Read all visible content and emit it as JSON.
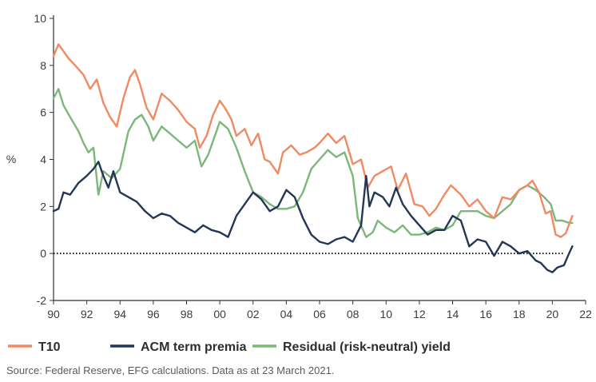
{
  "chart_data": {
    "type": "line",
    "ylabel": "%",
    "xlim": [
      1990,
      2022
    ],
    "ylim": [
      -2,
      10
    ],
    "x_ticks": [
      "90",
      "92",
      "94",
      "96",
      "98",
      "00",
      "02",
      "04",
      "06",
      "08",
      "10",
      "12",
      "14",
      "16",
      "18",
      "20",
      "22"
    ],
    "y_ticks": [
      "-2",
      "0",
      "2",
      "4",
      "6",
      "8",
      "10"
    ],
    "zero_line": true,
    "legend_position": "bottom",
    "series": [
      {
        "name": "T10",
        "color": "#f08a63",
        "points": [
          [
            1990.0,
            8.4
          ],
          [
            1990.3,
            8.9
          ],
          [
            1990.6,
            8.6
          ],
          [
            1990.9,
            8.3
          ],
          [
            1991.3,
            8.0
          ],
          [
            1991.8,
            7.6
          ],
          [
            1992.2,
            7.0
          ],
          [
            1992.6,
            7.4
          ],
          [
            1993.0,
            6.4
          ],
          [
            1993.4,
            5.8
          ],
          [
            1993.8,
            5.4
          ],
          [
            1994.2,
            6.6
          ],
          [
            1994.6,
            7.5
          ],
          [
            1994.9,
            7.8
          ],
          [
            1995.2,
            7.2
          ],
          [
            1995.6,
            6.2
          ],
          [
            1996.0,
            5.7
          ],
          [
            1996.5,
            6.8
          ],
          [
            1997.0,
            6.5
          ],
          [
            1997.5,
            6.1
          ],
          [
            1998.0,
            5.6
          ],
          [
            1998.5,
            5.3
          ],
          [
            1998.8,
            4.5
          ],
          [
            1999.2,
            5.0
          ],
          [
            1999.6,
            5.9
          ],
          [
            2000.0,
            6.5
          ],
          [
            2000.3,
            6.2
          ],
          [
            2000.7,
            5.7
          ],
          [
            2001.0,
            5.0
          ],
          [
            2001.5,
            5.3
          ],
          [
            2001.9,
            4.6
          ],
          [
            2002.3,
            5.1
          ],
          [
            2002.7,
            4.0
          ],
          [
            2003.0,
            3.9
          ],
          [
            2003.5,
            3.4
          ],
          [
            2003.8,
            4.3
          ],
          [
            2004.3,
            4.6
          ],
          [
            2004.8,
            4.2
          ],
          [
            2005.2,
            4.3
          ],
          [
            2005.7,
            4.5
          ],
          [
            2006.0,
            4.7
          ],
          [
            2006.5,
            5.1
          ],
          [
            2007.0,
            4.7
          ],
          [
            2007.5,
            5.0
          ],
          [
            2008.0,
            3.8
          ],
          [
            2008.5,
            4.0
          ],
          [
            2008.9,
            2.8
          ],
          [
            2009.3,
            3.3
          ],
          [
            2009.8,
            3.5
          ],
          [
            2010.3,
            3.7
          ],
          [
            2010.7,
            2.7
          ],
          [
            2011.2,
            3.4
          ],
          [
            2011.7,
            2.1
          ],
          [
            2012.2,
            2.0
          ],
          [
            2012.6,
            1.6
          ],
          [
            2013.0,
            1.9
          ],
          [
            2013.5,
            2.5
          ],
          [
            2013.9,
            2.9
          ],
          [
            2014.5,
            2.5
          ],
          [
            2015.0,
            2.0
          ],
          [
            2015.5,
            2.3
          ],
          [
            2016.0,
            1.8
          ],
          [
            2016.5,
            1.5
          ],
          [
            2017.0,
            2.4
          ],
          [
            2017.5,
            2.3
          ],
          [
            2018.0,
            2.7
          ],
          [
            2018.5,
            2.9
          ],
          [
            2018.8,
            3.1
          ],
          [
            2019.2,
            2.6
          ],
          [
            2019.6,
            1.7
          ],
          [
            2019.9,
            1.8
          ],
          [
            2020.2,
            0.8
          ],
          [
            2020.5,
            0.7
          ],
          [
            2020.8,
            0.85
          ],
          [
            2021.2,
            1.6
          ]
        ]
      },
      {
        "name": "ACM term premia",
        "color": "#243656",
        "points": [
          [
            1990.0,
            1.8
          ],
          [
            1990.3,
            1.9
          ],
          [
            1990.6,
            2.6
          ],
          [
            1991.0,
            2.5
          ],
          [
            1991.5,
            3.0
          ],
          [
            1992.0,
            3.3
          ],
          [
            1992.4,
            3.6
          ],
          [
            1992.7,
            3.9
          ],
          [
            1993.0,
            3.3
          ],
          [
            1993.3,
            2.8
          ],
          [
            1993.6,
            3.5
          ],
          [
            1994.0,
            2.6
          ],
          [
            1994.5,
            2.4
          ],
          [
            1995.0,
            2.2
          ],
          [
            1995.5,
            1.8
          ],
          [
            1996.0,
            1.5
          ],
          [
            1996.5,
            1.7
          ],
          [
            1997.0,
            1.6
          ],
          [
            1997.5,
            1.3
          ],
          [
            1998.0,
            1.1
          ],
          [
            1998.5,
            0.9
          ],
          [
            1999.0,
            1.2
          ],
          [
            1999.5,
            1.0
          ],
          [
            2000.0,
            0.9
          ],
          [
            2000.5,
            0.7
          ],
          [
            2001.0,
            1.6
          ],
          [
            2001.5,
            2.1
          ],
          [
            2002.0,
            2.6
          ],
          [
            2002.5,
            2.3
          ],
          [
            2003.0,
            1.8
          ],
          [
            2003.5,
            2.0
          ],
          [
            2004.0,
            2.7
          ],
          [
            2004.5,
            2.4
          ],
          [
            2005.0,
            1.5
          ],
          [
            2005.5,
            0.8
          ],
          [
            2006.0,
            0.5
          ],
          [
            2006.5,
            0.4
          ],
          [
            2007.0,
            0.6
          ],
          [
            2007.5,
            0.7
          ],
          [
            2008.0,
            0.5
          ],
          [
            2008.5,
            1.2
          ],
          [
            2008.8,
            3.3
          ],
          [
            2009.0,
            2.0
          ],
          [
            2009.3,
            2.6
          ],
          [
            2009.8,
            2.4
          ],
          [
            2010.2,
            2.0
          ],
          [
            2010.6,
            2.8
          ],
          [
            2011.0,
            2.1
          ],
          [
            2011.5,
            1.6
          ],
          [
            2012.0,
            1.2
          ],
          [
            2012.5,
            0.8
          ],
          [
            2013.0,
            1.0
          ],
          [
            2013.5,
            1.0
          ],
          [
            2014.0,
            1.6
          ],
          [
            2014.5,
            1.4
          ],
          [
            2015.0,
            0.3
          ],
          [
            2015.5,
            0.6
          ],
          [
            2016.0,
            0.5
          ],
          [
            2016.5,
            -0.1
          ],
          [
            2017.0,
            0.5
          ],
          [
            2017.5,
            0.3
          ],
          [
            2018.0,
            0.0
          ],
          [
            2018.5,
            0.1
          ],
          [
            2019.0,
            -0.3
          ],
          [
            2019.3,
            -0.4
          ],
          [
            2019.7,
            -0.7
          ],
          [
            2020.0,
            -0.8
          ],
          [
            2020.3,
            -0.6
          ],
          [
            2020.7,
            -0.5
          ],
          [
            2021.0,
            0.0
          ],
          [
            2021.2,
            0.3
          ]
        ]
      },
      {
        "name": "Residual (risk-neutral) yield",
        "color": "#7cb77a",
        "points": [
          [
            1990.0,
            6.6
          ],
          [
            1990.3,
            7.0
          ],
          [
            1990.6,
            6.3
          ],
          [
            1991.0,
            5.8
          ],
          [
            1991.5,
            5.2
          ],
          [
            1991.8,
            4.7
          ],
          [
            1992.1,
            4.3
          ],
          [
            1992.4,
            4.5
          ],
          [
            1992.7,
            2.5
          ],
          [
            1993.0,
            3.5
          ],
          [
            1993.5,
            3.2
          ],
          [
            1994.0,
            3.6
          ],
          [
            1994.5,
            5.2
          ],
          [
            1994.9,
            5.7
          ],
          [
            1995.3,
            5.9
          ],
          [
            1995.7,
            5.4
          ],
          [
            1996.0,
            4.8
          ],
          [
            1996.5,
            5.4
          ],
          [
            1997.0,
            5.1
          ],
          [
            1997.5,
            4.8
          ],
          [
            1998.0,
            4.5
          ],
          [
            1998.5,
            4.8
          ],
          [
            1998.9,
            3.7
          ],
          [
            1999.3,
            4.2
          ],
          [
            1999.6,
            4.8
          ],
          [
            2000.0,
            5.6
          ],
          [
            2000.5,
            5.3
          ],
          [
            2001.0,
            4.5
          ],
          [
            2001.5,
            3.5
          ],
          [
            2002.0,
            2.6
          ],
          [
            2002.5,
            2.4
          ],
          [
            2003.0,
            2.1
          ],
          [
            2003.5,
            1.9
          ],
          [
            2004.0,
            1.9
          ],
          [
            2004.5,
            2.0
          ],
          [
            2005.0,
            2.6
          ],
          [
            2005.5,
            3.6
          ],
          [
            2006.0,
            4.0
          ],
          [
            2006.5,
            4.4
          ],
          [
            2007.0,
            4.1
          ],
          [
            2007.5,
            4.3
          ],
          [
            2008.0,
            3.3
          ],
          [
            2008.3,
            1.5
          ],
          [
            2008.8,
            0.7
          ],
          [
            2009.2,
            0.9
          ],
          [
            2009.5,
            1.4
          ],
          [
            2010.0,
            1.1
          ],
          [
            2010.5,
            0.9
          ],
          [
            2011.0,
            1.2
          ],
          [
            2011.5,
            0.8
          ],
          [
            2012.0,
            0.8
          ],
          [
            2012.5,
            0.9
          ],
          [
            2013.0,
            1.1
          ],
          [
            2013.5,
            1.0
          ],
          [
            2014.0,
            1.2
          ],
          [
            2014.5,
            1.8
          ],
          [
            2015.0,
            1.8
          ],
          [
            2015.5,
            1.8
          ],
          [
            2016.0,
            1.6
          ],
          [
            2016.5,
            1.5
          ],
          [
            2017.0,
            1.8
          ],
          [
            2017.5,
            2.1
          ],
          [
            2018.0,
            2.7
          ],
          [
            2018.5,
            2.9
          ],
          [
            2019.0,
            2.7
          ],
          [
            2019.5,
            2.4
          ],
          [
            2019.9,
            2.1
          ],
          [
            2020.2,
            1.4
          ],
          [
            2020.6,
            1.4
          ],
          [
            2021.0,
            1.3
          ],
          [
            2021.2,
            1.3
          ]
        ]
      }
    ]
  },
  "source": "Source: Federal Reserve, EFG calculations. Data as at 23 March 2021."
}
